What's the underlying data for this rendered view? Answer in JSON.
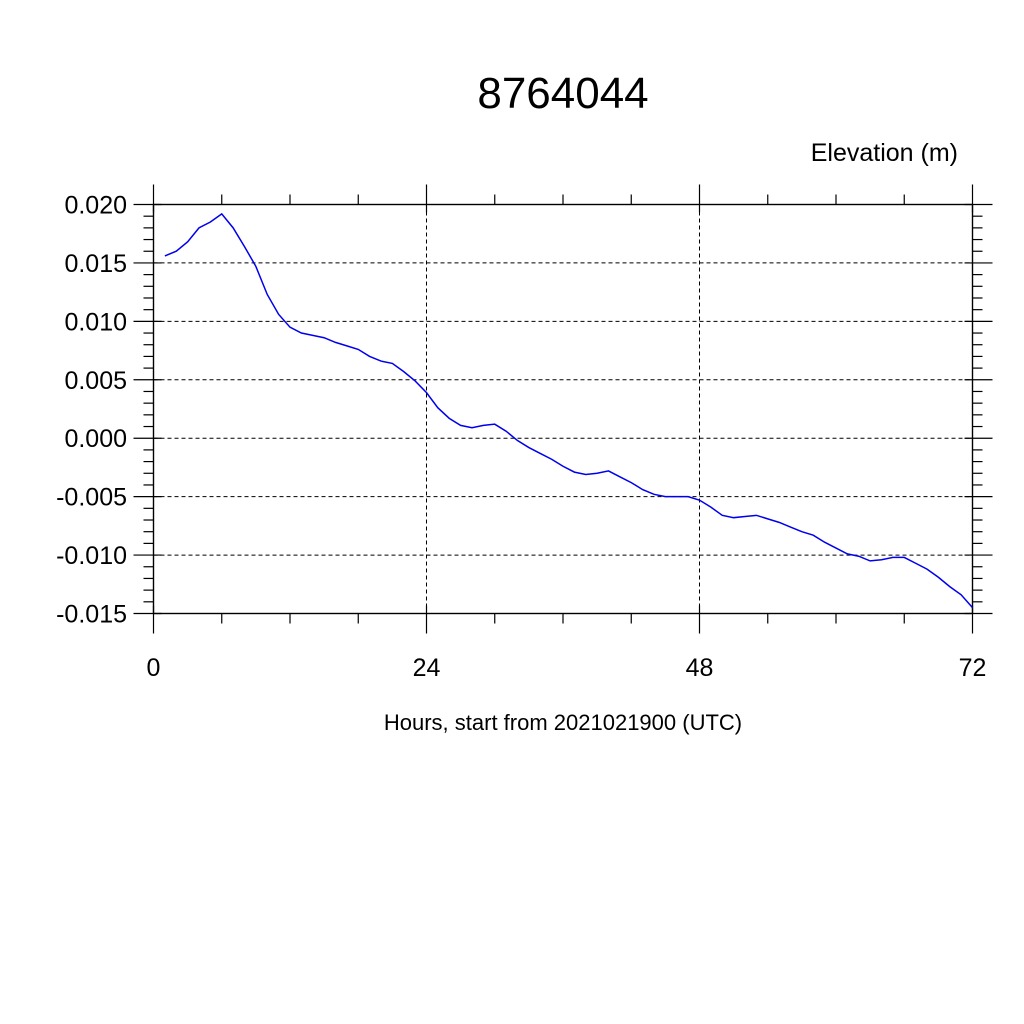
{
  "chart_data": {
    "type": "line",
    "title": "8764044",
    "unit_label": "Elevation (m)",
    "xlabel": "Hours, start from 2021021900 (UTC)",
    "ylabel": "",
    "xlim": [
      0,
      72
    ],
    "ylim": [
      -0.015,
      0.02
    ],
    "x_ticks": [
      0,
      24,
      48,
      72
    ],
    "x_tick_labels": [
      "0",
      "24",
      "48",
      "72"
    ],
    "y_ticks": [
      0.02,
      0.015,
      0.01,
      0.005,
      0.0,
      -0.005,
      -0.01,
      -0.015
    ],
    "y_tick_labels": [
      "0.020",
      "0.015",
      "0.010",
      "0.005",
      "0.000",
      "-0.005",
      "-0.010",
      "-0.015"
    ],
    "grid": true,
    "line_color": "#0000ee",
    "series": [
      {
        "x": [
          1,
          2,
          3,
          4,
          5,
          6,
          7,
          8,
          9,
          10,
          11,
          12,
          13,
          14,
          15,
          16,
          17,
          18,
          19,
          20,
          21,
          22,
          23,
          24,
          25,
          26,
          27,
          28,
          29,
          30,
          31,
          32,
          33,
          34,
          35,
          36,
          37,
          38,
          39,
          40,
          41,
          42,
          43,
          44,
          45,
          46,
          47,
          48,
          49,
          50,
          51,
          52,
          53,
          54,
          55,
          56,
          57,
          58,
          59,
          60,
          61,
          62,
          63,
          64,
          65,
          66,
          67,
          68,
          69,
          70,
          71,
          72
        ],
        "values": [
          0.0156,
          0.016,
          0.0168,
          0.018,
          0.0185,
          0.0192,
          0.018,
          0.0164,
          0.0147,
          0.0123,
          0.0106,
          0.0095,
          0.009,
          0.0088,
          0.0086,
          0.0082,
          0.0079,
          0.0076,
          0.007,
          0.0066,
          0.0064,
          0.0057,
          0.0049,
          0.0039,
          0.0026,
          0.0017,
          0.0011,
          0.0009,
          0.0011,
          0.0012,
          0.0006,
          -0.0002,
          -0.0008,
          -0.0013,
          -0.0018,
          -0.0024,
          -0.0029,
          -0.0031,
          -0.003,
          -0.0028,
          -0.0033,
          -0.0038,
          -0.0044,
          -0.0048,
          -0.005,
          -0.005,
          -0.005,
          -0.0053,
          -0.0059,
          -0.0066,
          -0.0068,
          -0.0067,
          -0.0066,
          -0.0069,
          -0.0072,
          -0.0076,
          -0.008,
          -0.0083,
          -0.0089,
          -0.0094,
          -0.0099,
          -0.0101,
          -0.0105,
          -0.0104,
          -0.0102,
          -0.0102,
          -0.0107,
          -0.0112,
          -0.0119,
          -0.0127,
          -0.0134,
          -0.0145
        ]
      }
    ]
  }
}
